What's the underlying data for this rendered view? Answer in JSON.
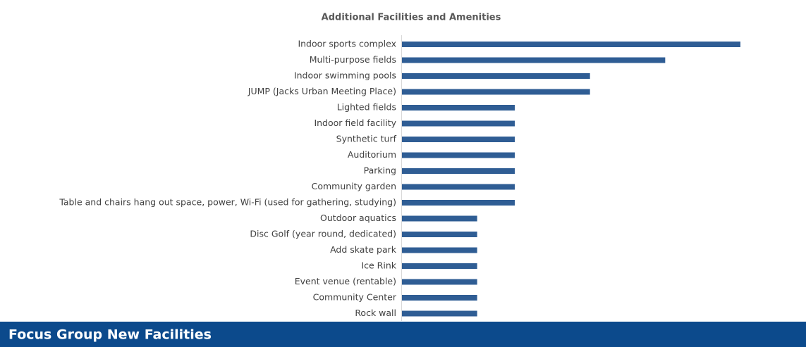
{
  "chart_data": {
    "type": "bar",
    "orientation": "horizontal",
    "title": "Additional Facilities and Amenities",
    "categories": [
      "Indoor sports complex",
      "Multi-purpose fields",
      "Indoor swimming pools",
      "JUMP (Jacks Urban Meeting Place)",
      "Lighted fields",
      "Indoor field facility",
      "Synthetic turf",
      "Auditorium",
      "Parking",
      "Community garden",
      "Table and chairs hang out space, power, Wi-Fi (used for gathering, studying)",
      "Outdoor aquatics",
      "Disc Golf (year round, dedicated)",
      "Add skate park",
      "Ice Rink",
      "Event venue (rentable)",
      "Community Center",
      "Rock wall"
    ],
    "values": [
      9,
      7,
      5,
      5,
      3,
      3,
      3,
      3,
      3,
      3,
      3,
      2,
      2,
      2,
      2,
      2,
      2,
      2
    ],
    "color": "#2f5d94"
  },
  "footer": {
    "title": "Focus Group New Facilities"
  }
}
